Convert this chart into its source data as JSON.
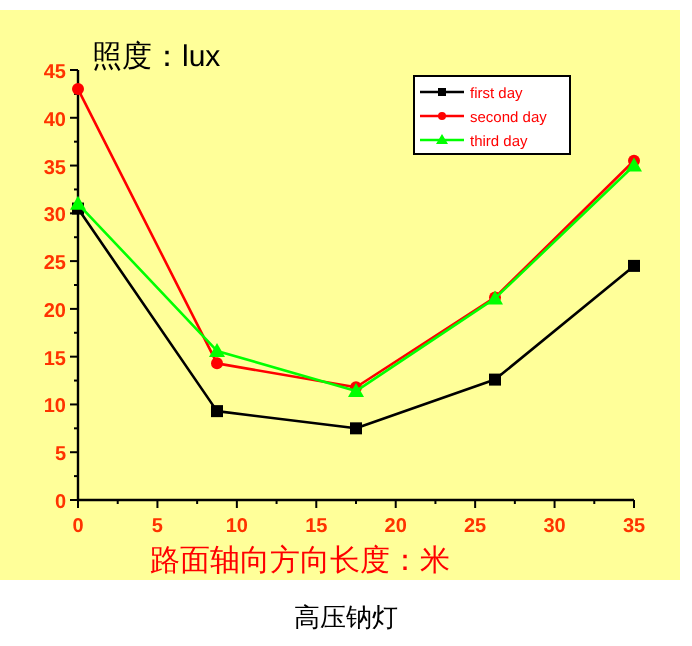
{
  "chart_data": {
    "type": "line",
    "ylabel": "照度：lux",
    "xlabel": "路面轴向方向长度：米",
    "annotations": [
      "高压钠灯"
    ],
    "x": [
      0,
      8.75,
      17.5,
      26.25,
      35
    ],
    "series": [
      {
        "name": "first day",
        "color": "#000000",
        "marker": "square",
        "values": [
          30.5,
          9.3,
          7.5,
          12.6,
          24.5
        ]
      },
      {
        "name": "second day",
        "color": "#ff0000",
        "marker": "circle",
        "values": [
          43,
          14.3,
          11.8,
          21.2,
          35.5
        ]
      },
      {
        "name": "third day",
        "color": "#00ff00",
        "marker": "triangle",
        "values": [
          31,
          15.6,
          11.4,
          21.1,
          35
        ]
      }
    ],
    "xlim": [
      0,
      35
    ],
    "xticks": [
      0,
      5,
      10,
      15,
      20,
      25,
      30,
      35
    ],
    "ylim": [
      0,
      45
    ],
    "yticks": [
      0,
      5,
      10,
      15,
      20,
      25,
      30,
      35,
      40,
      45
    ],
    "grid": false,
    "legend": "top right"
  }
}
